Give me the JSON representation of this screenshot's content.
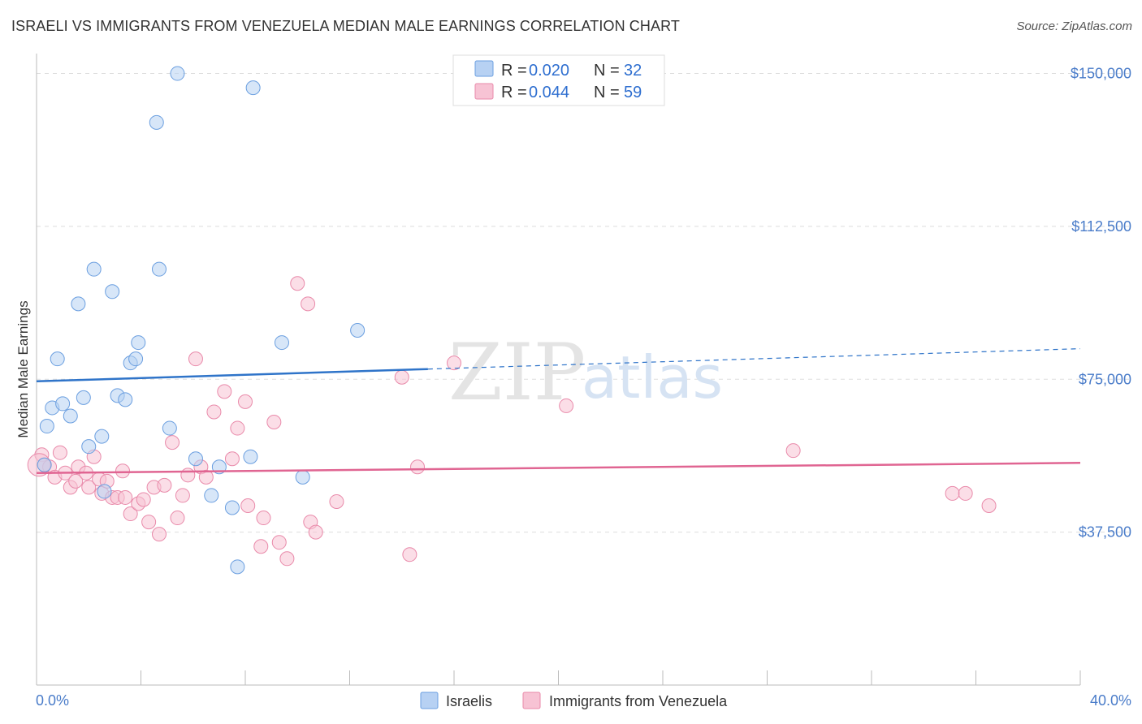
{
  "header": {
    "title": "ISRAELI VS IMMIGRANTS FROM VENEZUELA MEDIAN MALE EARNINGS CORRELATION CHART",
    "source": "Source: ZipAtlas.com"
  },
  "watermark": {
    "zip": "ZIP",
    "atlas": "atlas"
  },
  "colors": {
    "israelis": "#6b9fe0",
    "israelis_fill": "#b7d1f3",
    "israelis_line": "#2f74c9",
    "venezuela": "#e98aaa",
    "venezuela_fill": "#f7c3d4",
    "venezuela_line": "#e06592",
    "value_text": "#2f6fd0",
    "grid": "#dddddd"
  },
  "chart_data": {
    "type": "scatter",
    "title": "ISRAELI VS IMMIGRANTS FROM VENEZUELA MEDIAN MALE EARNINGS CORRELATION CHART",
    "xlabel": "",
    "ylabel": "Median Male Earnings",
    "xlim": [
      0,
      40
    ],
    "ylim": [
      0,
      152500
    ],
    "x_tick_labels": [
      "0.0%",
      "40.0%"
    ],
    "y_ticks": [
      37500,
      75000,
      112500,
      150000
    ],
    "y_tick_labels": [
      "$37,500",
      "$75,000",
      "$112,500",
      "$150,000"
    ],
    "legend_position": "top-center",
    "legend": [
      {
        "r_label": "R = ",
        "r_value": "0.020",
        "n_label": "N = ",
        "n_value": "32"
      },
      {
        "r_label": "R = ",
        "r_value": "0.044",
        "n_label": "N = ",
        "n_value": "59"
      }
    ],
    "series": [
      {
        "name": "Israelis",
        "points": [
          [
            0.3,
            54000
          ],
          [
            0.4,
            63500
          ],
          [
            0.6,
            68000
          ],
          [
            0.8,
            80000
          ],
          [
            1.0,
            69000
          ],
          [
            1.3,
            66000
          ],
          [
            1.6,
            93500
          ],
          [
            1.8,
            70500
          ],
          [
            2.0,
            58500
          ],
          [
            2.2,
            102000
          ],
          [
            2.5,
            61000
          ],
          [
            2.6,
            47500
          ],
          [
            2.9,
            96500
          ],
          [
            3.1,
            71000
          ],
          [
            3.4,
            70000
          ],
          [
            3.6,
            79000
          ],
          [
            3.8,
            80000
          ],
          [
            3.9,
            84000
          ],
          [
            4.6,
            138000
          ],
          [
            4.7,
            102000
          ],
          [
            5.1,
            63000
          ],
          [
            5.4,
            150000
          ],
          [
            6.1,
            55500
          ],
          [
            6.7,
            46500
          ],
          [
            7.0,
            53500
          ],
          [
            7.5,
            43500
          ],
          [
            7.7,
            29000
          ],
          [
            8.2,
            56000
          ],
          [
            8.3,
            146500
          ],
          [
            9.4,
            84000
          ],
          [
            10.2,
            51000
          ],
          [
            12.3,
            87000
          ]
        ]
      },
      {
        "name": "Immigrants from Venezuela",
        "points": [
          [
            0.2,
            56500
          ],
          [
            0.3,
            54000
          ],
          [
            0.5,
            53500
          ],
          [
            0.7,
            51000
          ],
          [
            0.9,
            57000
          ],
          [
            1.1,
            52000
          ],
          [
            1.3,
            48500
          ],
          [
            1.5,
            50000
          ],
          [
            1.6,
            53500
          ],
          [
            1.9,
            52000
          ],
          [
            2.0,
            48500
          ],
          [
            2.2,
            56000
          ],
          [
            2.4,
            50500
          ],
          [
            2.5,
            47000
          ],
          [
            2.7,
            50000
          ],
          [
            2.9,
            46000
          ],
          [
            3.1,
            46000
          ],
          [
            3.3,
            52500
          ],
          [
            3.4,
            46000
          ],
          [
            3.6,
            42000
          ],
          [
            3.9,
            44500
          ],
          [
            4.1,
            45500
          ],
          [
            4.3,
            40000
          ],
          [
            4.5,
            48500
          ],
          [
            4.7,
            37000
          ],
          [
            4.9,
            49000
          ],
          [
            5.2,
            59500
          ],
          [
            5.4,
            41000
          ],
          [
            5.6,
            46500
          ],
          [
            5.8,
            51500
          ],
          [
            6.1,
            80000
          ],
          [
            6.3,
            53500
          ],
          [
            6.5,
            51000
          ],
          [
            6.8,
            67000
          ],
          [
            7.2,
            72000
          ],
          [
            7.5,
            55500
          ],
          [
            7.7,
            63000
          ],
          [
            8.0,
            69500
          ],
          [
            8.1,
            44000
          ],
          [
            8.6,
            34000
          ],
          [
            8.7,
            41000
          ],
          [
            9.1,
            64500
          ],
          [
            9.3,
            35000
          ],
          [
            9.6,
            31000
          ],
          [
            10.0,
            98500
          ],
          [
            10.4,
            93500
          ],
          [
            10.5,
            40000
          ],
          [
            10.7,
            37500
          ],
          [
            11.5,
            45000
          ],
          [
            14.0,
            75500
          ],
          [
            14.3,
            32000
          ],
          [
            14.6,
            53500
          ],
          [
            16.0,
            79000
          ],
          [
            20.3,
            68500
          ],
          [
            29.0,
            57500
          ],
          [
            35.1,
            47000
          ],
          [
            35.6,
            47000
          ],
          [
            36.5,
            44000
          ],
          [
            0.1,
            54000
          ]
        ]
      }
    ],
    "trend_lines": [
      {
        "series": "Israelis",
        "solid": [
          [
            0,
            74500
          ],
          [
            15,
            77500
          ]
        ],
        "dashed": [
          [
            15,
            77500
          ],
          [
            40,
            82500
          ]
        ]
      },
      {
        "series": "Immigrants from Venezuela",
        "solid": [
          [
            0,
            52000
          ],
          [
            40,
            54500
          ]
        ]
      }
    ]
  }
}
